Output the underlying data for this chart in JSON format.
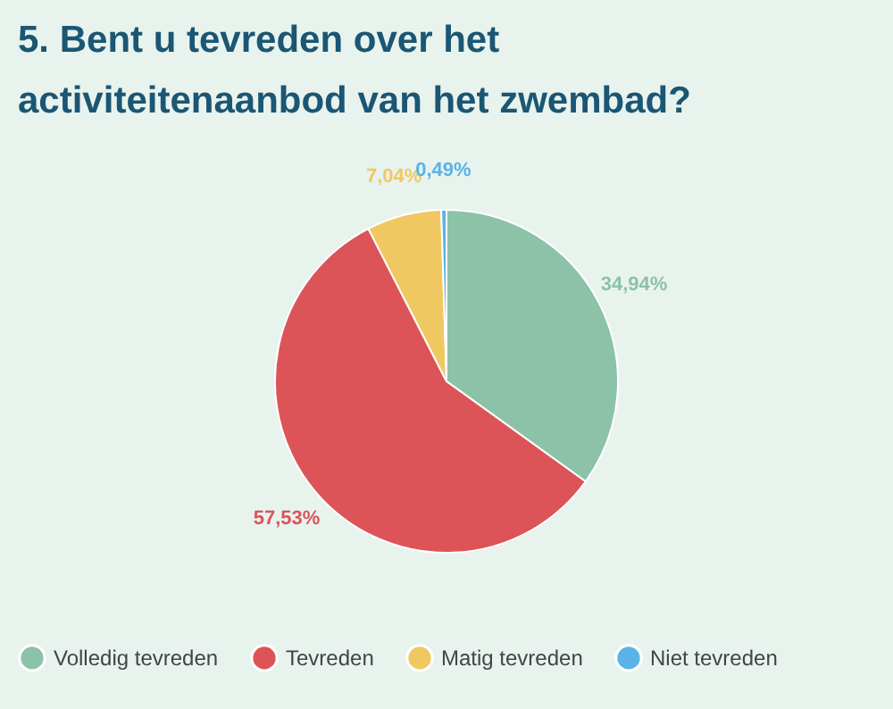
{
  "chart_data": {
    "type": "pie",
    "title": "5. Bent u tevreden over het\nactiviteitenaanbod van het zwembad?",
    "categories": [
      "Volledig tevreden",
      "Tevreden",
      "Matig tevreden",
      "Niet tevreden"
    ],
    "values": [
      34.94,
      57.53,
      7.04,
      0.49
    ],
    "colors": [
      "#8cc2a8",
      "#dd5458",
      "#f0c862",
      "#5ab3e6"
    ],
    "value_labels": [
      "34,94%",
      "57,53%",
      "7,04%",
      "0,49%"
    ],
    "legend": "bottom"
  }
}
